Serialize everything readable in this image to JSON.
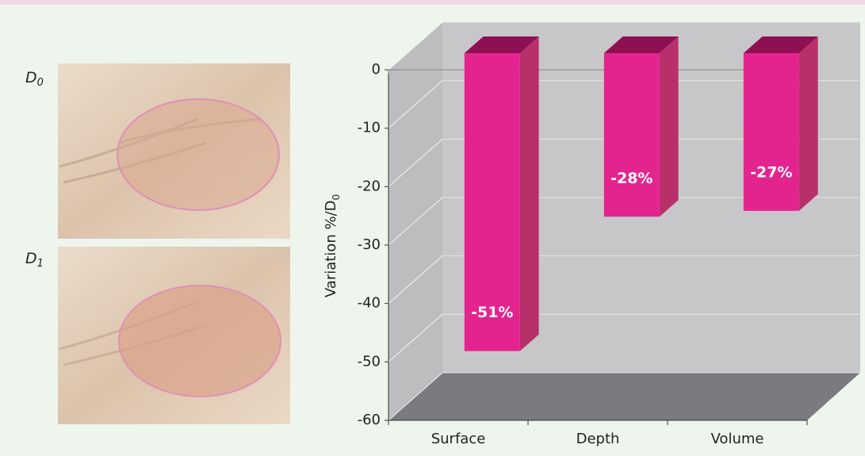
{
  "images": [
    {
      "letter": "D",
      "sub": "0"
    },
    {
      "letter": "D",
      "sub": "1"
    }
  ],
  "chart_data": {
    "type": "bar",
    "y_label": "Variation %/D",
    "y_label_sub": "0",
    "categories": [
      "Surface",
      "Depth",
      "Volume"
    ],
    "values": [
      -51,
      -28,
      -27
    ],
    "value_labels": [
      "-51%",
      "-28%",
      "-27%"
    ],
    "color": "#e3248f",
    "ylim": [
      -60,
      0
    ],
    "yticks": [
      0,
      -10,
      -20,
      -30,
      -40,
      -50,
      -60
    ],
    "grid": true
  }
}
